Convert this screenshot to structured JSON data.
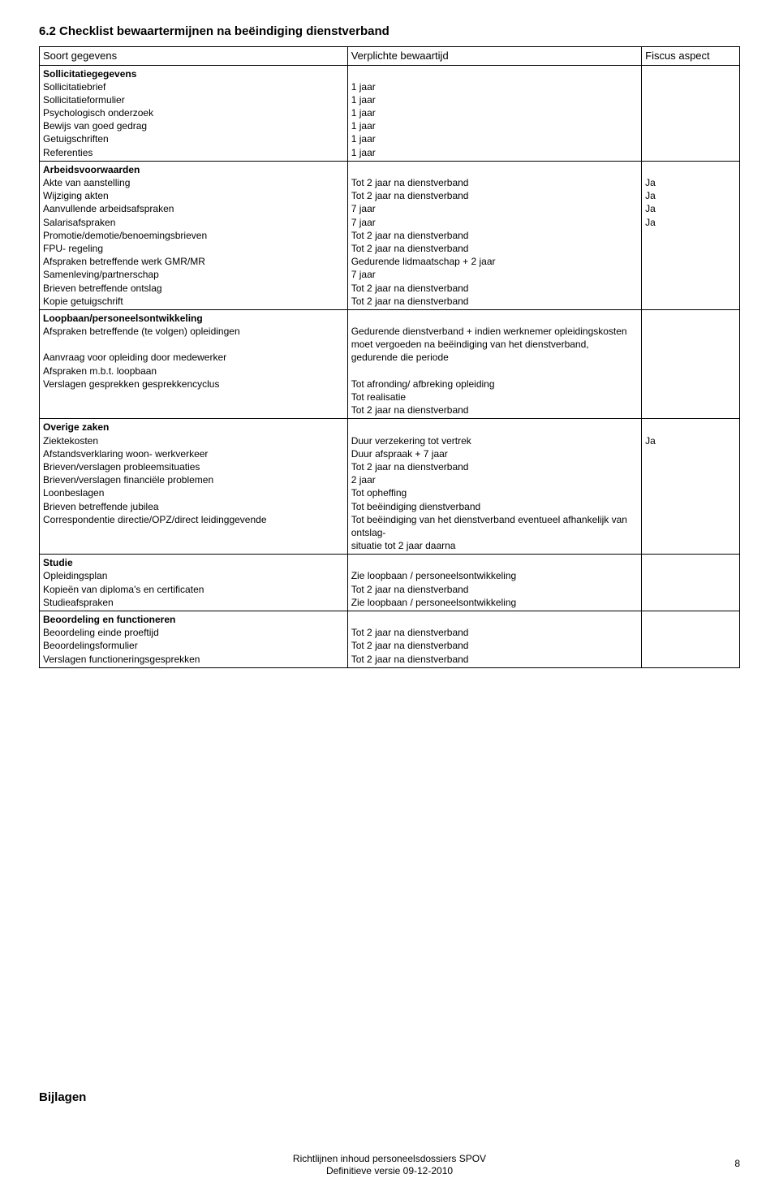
{
  "heading": "6.2 Checklist bewaartermijnen na beëindiging dienstverband",
  "columns": {
    "soort": "Soort gegevens",
    "bewaar": "Verplichte bewaartijd",
    "fiscus": "Fiscus aspect"
  },
  "sections": [
    {
      "title": "Sollicitatiegegevens",
      "rows": [
        {
          "l": "Sollicitatiebrief",
          "m": "1 jaar",
          "r": ""
        },
        {
          "l": "Sollicitatieformulier",
          "m": "1 jaar",
          "r": ""
        },
        {
          "l": "Psychologisch onderzoek",
          "m": "1 jaar",
          "r": ""
        },
        {
          "l": "Bewijs van goed gedrag",
          "m": "1 jaar",
          "r": ""
        },
        {
          "l": "Getuigschriften",
          "m": "1 jaar",
          "r": ""
        },
        {
          "l": "Referenties",
          "m": "1 jaar",
          "r": ""
        }
      ]
    },
    {
      "title": "Arbeidsvoorwaarden",
      "rows": [
        {
          "l": "Akte van aanstelling",
          "m": "Tot 2 jaar na dienstverband",
          "r": "Ja"
        },
        {
          "l": "Wijziging akten",
          "m": "Tot 2 jaar na dienstverband",
          "r": "Ja"
        },
        {
          "l": "Aanvullende arbeidsafspraken",
          "m": "7 jaar",
          "r": "Ja"
        },
        {
          "l": "Salarisafspraken",
          "m": "7 jaar",
          "r": "Ja"
        },
        {
          "l": "Promotie/demotie/benoemingsbrieven",
          "m": "Tot 2 jaar na dienstverband",
          "r": ""
        },
        {
          "l": "FPU- regeling",
          "m": "Tot 2 jaar na dienstverband",
          "r": ""
        },
        {
          "l": "Afspraken betreffende werk GMR/MR",
          "m": "Gedurende lidmaatschap + 2 jaar",
          "r": ""
        },
        {
          "l": "Samenleving/partnerschap",
          "m": "7 jaar",
          "r": ""
        },
        {
          "l": "Brieven betreffende ontslag",
          "m": "Tot 2 jaar na dienstverband",
          "r": ""
        },
        {
          "l": "Kopie getuigschrift",
          "m": "Tot 2 jaar na dienstverband",
          "r": ""
        }
      ]
    },
    {
      "title": "Loopbaan/personeelsontwikkeling",
      "rows": [
        {
          "l": "Afspraken betreffende (te volgen) opleidingen",
          "m": "Gedurende dienstverband + indien werknemer opleidingskosten moet vergoeden na beëindiging van het dienstverband, gedurende die periode",
          "r": ""
        },
        {
          "l": "",
          "m": "",
          "r": ""
        },
        {
          "l": "Aanvraag voor opleiding door medewerker",
          "m": "Tot afronding/ afbreking opleiding",
          "r": ""
        },
        {
          "l": "Afspraken m.b.t. loopbaan",
          "m": "Tot realisatie",
          "r": ""
        },
        {
          "l": "Verslagen gesprekken gesprekkencyclus",
          "m": "Tot 2 jaar na dienstverband",
          "r": ""
        }
      ]
    },
    {
      "title": "Overige zaken",
      "rows": [
        {
          "l": "Ziektekosten",
          "m": "Duur verzekering tot vertrek",
          "r": "Ja"
        },
        {
          "l": "Afstandsverklaring woon- werkverkeer",
          "m": "Duur afspraak + 7 jaar",
          "r": ""
        },
        {
          "l": "Brieven/verslagen probleemsituaties",
          "m": "Tot 2 jaar na dienstverband",
          "r": ""
        },
        {
          "l": "Brieven/verslagen financiële problemen",
          "m": "2 jaar",
          "r": ""
        },
        {
          "l": "Loonbeslagen",
          "m": "Tot opheffing",
          "r": ""
        },
        {
          "l": "Brieven betreffende jubilea",
          "m": "Tot beëindiging dienstverband",
          "r": ""
        },
        {
          "l": "Correspondentie directie/OPZ/direct leidinggevende",
          "m": "Tot beëindiging van het dienstverband eventueel afhankelijk van ontslag-",
          "r": ""
        },
        {
          "l": "",
          "m": "situatie tot 2 jaar daarna",
          "r": ""
        }
      ]
    },
    {
      "title": "Studie",
      "rows": [
        {
          "l": "Opleidingsplan",
          "m": "Zie loopbaan / personeelsontwikkeling",
          "r": ""
        },
        {
          "l": "Kopieën van diploma's en certificaten",
          "m": "Tot 2 jaar na dienstverband",
          "r": ""
        },
        {
          "l": "Studieafspraken",
          "m": "Zie loopbaan / personeelsontwikkeling",
          "r": ""
        }
      ]
    },
    {
      "title": "Beoordeling en functioneren",
      "rows": [
        {
          "l": "Beoordeling einde proeftijd",
          "m": "Tot 2 jaar na dienstverband",
          "r": ""
        },
        {
          "l": "Beoordelingsformulier",
          "m": "Tot 2 jaar na dienstverband",
          "r": ""
        },
        {
          "l": "Verslagen functioneringsgesprekken",
          "m": "Tot 2 jaar na dienstverband",
          "r": ""
        }
      ]
    }
  ],
  "bijlagen": "Bijlagen",
  "footer1": "Richtlijnen inhoud personeelsdossiers SPOV",
  "footer2": "Definitieve versie  09-12-2010",
  "pageNumber": "8"
}
